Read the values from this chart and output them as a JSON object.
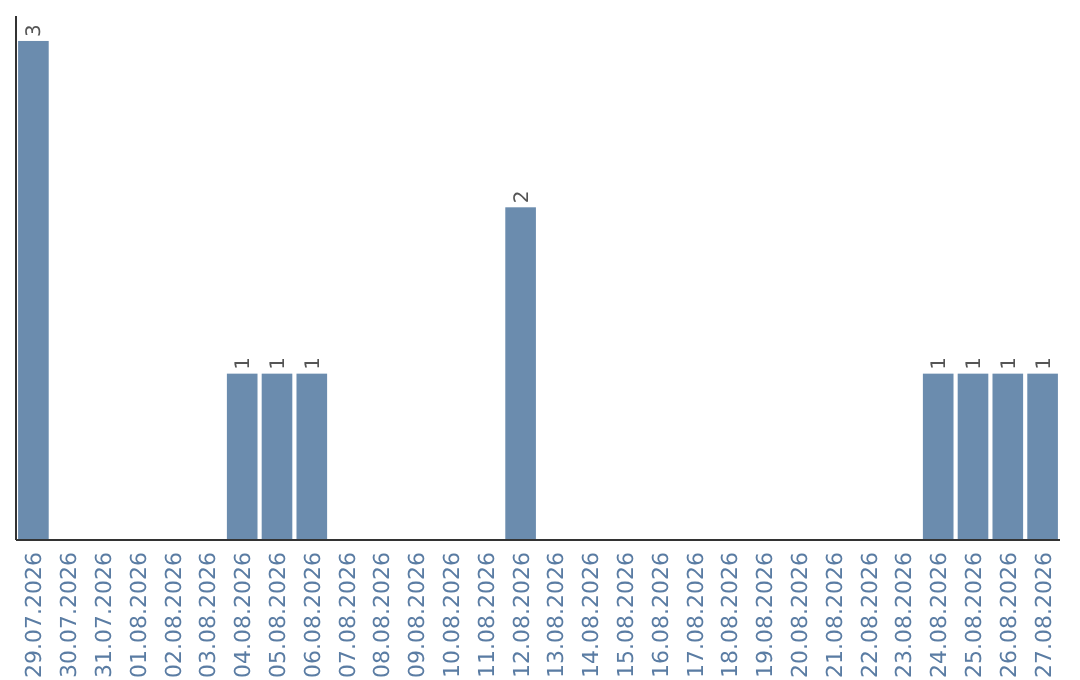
{
  "chart_data": {
    "type": "bar",
    "categories": [
      "29.07.2026",
      "30.07.2026",
      "31.07.2026",
      "01.08.2026",
      "02.08.2026",
      "03.08.2026",
      "04.08.2026",
      "05.08.2026",
      "06.08.2026",
      "07.08.2026",
      "08.08.2026",
      "09.08.2026",
      "10.08.2026",
      "11.08.2026",
      "12.08.2026",
      "13.08.2026",
      "14.08.2026",
      "15.08.2026",
      "16.08.2026",
      "17.08.2026",
      "18.08.2026",
      "19.08.2026",
      "20.08.2026",
      "21.08.2026",
      "22.08.2026",
      "23.08.2026",
      "24.08.2026",
      "25.08.2026",
      "26.08.2026",
      "27.08.2026"
    ],
    "values": [
      3,
      0,
      0,
      0,
      0,
      0,
      1,
      1,
      1,
      0,
      0,
      0,
      0,
      0,
      2,
      0,
      0,
      0,
      0,
      0,
      0,
      0,
      0,
      0,
      0,
      0,
      1,
      1,
      1,
      1
    ],
    "value_labels": [
      "3",
      null,
      null,
      null,
      null,
      null,
      "1",
      "1",
      "1",
      null,
      null,
      null,
      null,
      null,
      "2",
      null,
      null,
      null,
      null,
      null,
      null,
      null,
      null,
      null,
      null,
      null,
      "1",
      "1",
      "1",
      "1"
    ],
    "color": "#6b8cae",
    "ylim": [
      0,
      3.15
    ]
  }
}
